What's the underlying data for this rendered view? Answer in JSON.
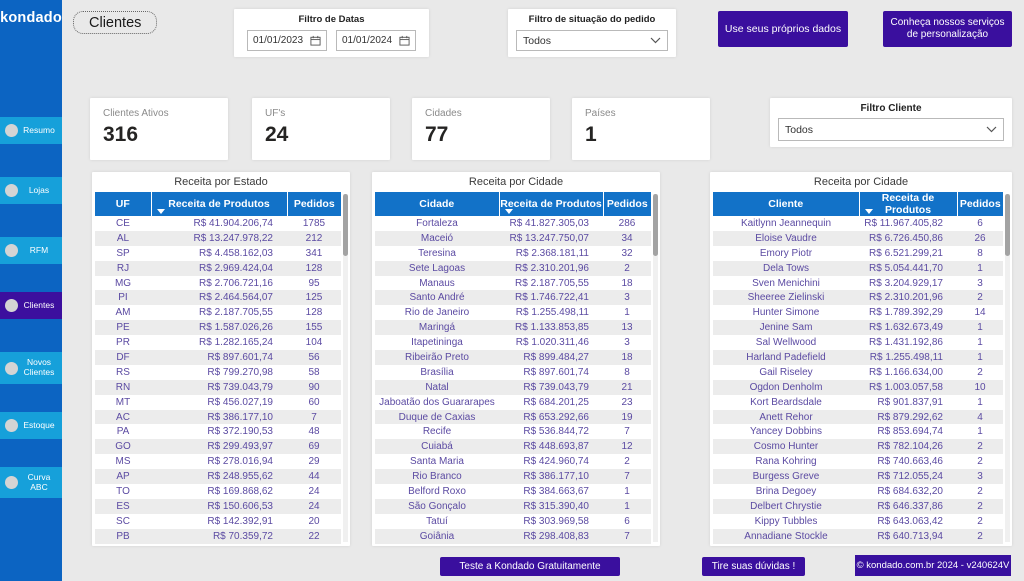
{
  "app": {
    "logo": "kondado"
  },
  "sidebar": {
    "items": [
      {
        "label": "Resumo",
        "selected": false
      },
      {
        "label": "Lojas",
        "selected": false
      },
      {
        "label": "RFM",
        "selected": false
      },
      {
        "label": "Clientes",
        "selected": true
      },
      {
        "label": "Novos Clientes",
        "selected": false
      },
      {
        "label": "Estoque",
        "selected": false
      },
      {
        "label": "Curva ABC",
        "selected": false
      }
    ]
  },
  "header": {
    "page_title": "Clientes",
    "date_filter": {
      "label": "Filtro de Datas",
      "start_date": "01/01/2023",
      "end_date": "01/01/2024"
    },
    "order_status_filter": {
      "label": "Filtro de situação do pedido",
      "value": "Todos"
    },
    "own_data_button": "Use seus próprios dados",
    "services_button": "Conheça nossos serviços de personalização"
  },
  "kpis": [
    {
      "label": "Clientes Ativos",
      "value": "316"
    },
    {
      "label": "UF's",
      "value": "24"
    },
    {
      "label": "Cidades",
      "value": "77"
    },
    {
      "label": "Países",
      "value": "1"
    }
  ],
  "client_filter": {
    "label": "Filtro Cliente",
    "value": "Todos"
  },
  "tables": [
    {
      "title": "Receita por Estado",
      "columns": [
        "UF",
        "Receita de Produtos",
        "Pedidos"
      ],
      "sorted_by": "Receita de Produtos",
      "sort_direction": "descending",
      "rows": [
        [
          "CE",
          "R$ 41.904.206,74",
          "1785"
        ],
        [
          "AL",
          "R$ 13.247.978,22",
          "212"
        ],
        [
          "SP",
          "R$ 4.458.162,03",
          "341"
        ],
        [
          "RJ",
          "R$ 2.969.424,04",
          "128"
        ],
        [
          "MG",
          "R$ 2.706.721,16",
          "95"
        ],
        [
          "PI",
          "R$ 2.464.564,07",
          "125"
        ],
        [
          "AM",
          "R$ 2.187.705,55",
          "128"
        ],
        [
          "PE",
          "R$ 1.587.026,26",
          "155"
        ],
        [
          "PR",
          "R$ 1.282.165,24",
          "104"
        ],
        [
          "DF",
          "R$ 897.601,74",
          "56"
        ],
        [
          "RS",
          "R$ 799.270,98",
          "58"
        ],
        [
          "RN",
          "R$ 739.043,79",
          "90"
        ],
        [
          "MT",
          "R$ 456.027,19",
          "60"
        ],
        [
          "AC",
          "R$ 386.177,10",
          "7"
        ],
        [
          "PA",
          "R$ 372.190,53",
          "48"
        ],
        [
          "GO",
          "R$ 299.493,97",
          "69"
        ],
        [
          "MS",
          "R$ 278.016,94",
          "29"
        ],
        [
          "AP",
          "R$ 248.955,62",
          "44"
        ],
        [
          "TO",
          "R$ 169.868,62",
          "24"
        ],
        [
          "ES",
          "R$ 150.606,53",
          "24"
        ],
        [
          "SC",
          "R$ 142.392,91",
          "20"
        ],
        [
          "PB",
          "R$ 70.359,72",
          "22"
        ]
      ]
    },
    {
      "title": "Receita por Cidade",
      "columns": [
        "Cidade",
        "Receita de Produtos",
        "Pedidos"
      ],
      "sorted_by": "Receita de Produtos",
      "sort_direction": "descending",
      "rows": [
        [
          "Fortaleza",
          "R$ 41.827.305,03",
          "286"
        ],
        [
          "Maceió",
          "R$ 13.247.750,07",
          "34"
        ],
        [
          "Teresina",
          "R$ 2.368.181,11",
          "32"
        ],
        [
          "Sete Lagoas",
          "R$ 2.310.201,96",
          "2"
        ],
        [
          "Manaus",
          "R$ 2.187.705,55",
          "18"
        ],
        [
          "Santo André",
          "R$ 1.746.722,41",
          "3"
        ],
        [
          "Rio de Janeiro",
          "R$ 1.255.498,11",
          "1"
        ],
        [
          "Maringá",
          "R$ 1.133.853,85",
          "13"
        ],
        [
          "Itapetininga",
          "R$ 1.020.311,46",
          "3"
        ],
        [
          "Ribeirão Preto",
          "R$ 899.484,27",
          "18"
        ],
        [
          "Brasília",
          "R$ 897.601,74",
          "8"
        ],
        [
          "Natal",
          "R$ 739.043,79",
          "21"
        ],
        [
          "Jaboatão dos Guararapes",
          "R$ 684.201,25",
          "23"
        ],
        [
          "Duque de Caxias",
          "R$ 653.292,66",
          "19"
        ],
        [
          "Recife",
          "R$ 536.844,72",
          "7"
        ],
        [
          "Cuiabá",
          "R$ 448.693,87",
          "12"
        ],
        [
          "Santa Maria",
          "R$ 424.960,74",
          "2"
        ],
        [
          "Rio Branco",
          "R$ 386.177,10",
          "7"
        ],
        [
          "Belford Roxo",
          "R$ 384.663,67",
          "1"
        ],
        [
          "São Gonçalo",
          "R$ 315.390,40",
          "1"
        ],
        [
          "Tatuí",
          "R$ 303.969,58",
          "6"
        ],
        [
          "Goiânia",
          "R$ 298.408,83",
          "7"
        ]
      ]
    },
    {
      "title": "Receita por Cidade",
      "columns": [
        "Cliente",
        "Receita de Produtos",
        "Pedidos"
      ],
      "sorted_by": "Receita de Produtos",
      "sort_direction": "descending",
      "rows": [
        [
          "Kaitlynn Jeannequin",
          "R$ 11.967.405,82",
          "6"
        ],
        [
          "Eloise Vaudre",
          "R$ 6.726.450,86",
          "26"
        ],
        [
          "Emory Piotr",
          "R$ 6.521.299,21",
          "8"
        ],
        [
          "Dela Tows",
          "R$ 5.054.441,70",
          "1"
        ],
        [
          "Sven Menichini",
          "R$ 3.204.929,17",
          "3"
        ],
        [
          "Sheeree Zielinski",
          "R$ 2.310.201,96",
          "2"
        ],
        [
          "Hunter Simone",
          "R$ 1.789.392,29",
          "14"
        ],
        [
          "Jenine Sam",
          "R$ 1.632.673,49",
          "1"
        ],
        [
          "Sal Wellwood",
          "R$ 1.431.192,86",
          "1"
        ],
        [
          "Harland Padefield",
          "R$ 1.255.498,11",
          "1"
        ],
        [
          "Gail Riseley",
          "R$ 1.166.634,00",
          "2"
        ],
        [
          "Ogdon Denholm",
          "R$ 1.003.057,58",
          "10"
        ],
        [
          "Kort Beardsdale",
          "R$ 901.837,91",
          "1"
        ],
        [
          "Anett Rehor",
          "R$ 879.292,62",
          "4"
        ],
        [
          "Yancey Dobbins",
          "R$ 853.694,74",
          "1"
        ],
        [
          "Cosmo Hunter",
          "R$ 782.104,26",
          "2"
        ],
        [
          "Rana Kohring",
          "R$ 740.663,46",
          "2"
        ],
        [
          "Burgess Greve",
          "R$ 712.055,24",
          "3"
        ],
        [
          "Brina Degoey",
          "R$ 684.632,20",
          "2"
        ],
        [
          "Delbert Chrystie",
          "R$ 646.337,86",
          "2"
        ],
        [
          "Kippy Tubbles",
          "R$ 643.063,42",
          "2"
        ],
        [
          "Annadiane Stockle",
          "R$ 640.713,94",
          "2"
        ]
      ]
    }
  ],
  "footer": {
    "trial_button": "Teste a Kondado Gratuitamente",
    "doubts_button": "Tire suas dúvidas !",
    "copyright": "© kondado.com.br 2024 - v240624V"
  },
  "colors": {
    "sidebar_blue": "#0c64c2",
    "nav_item_blue": "#16a0da",
    "selected_nav_purple": "#3c0f9e",
    "table_header_blue": "#1272c8",
    "button_purple": "#3a0f9e",
    "table_text_purple": "#5b4aa2",
    "page_background": "#e9e9e9"
  }
}
